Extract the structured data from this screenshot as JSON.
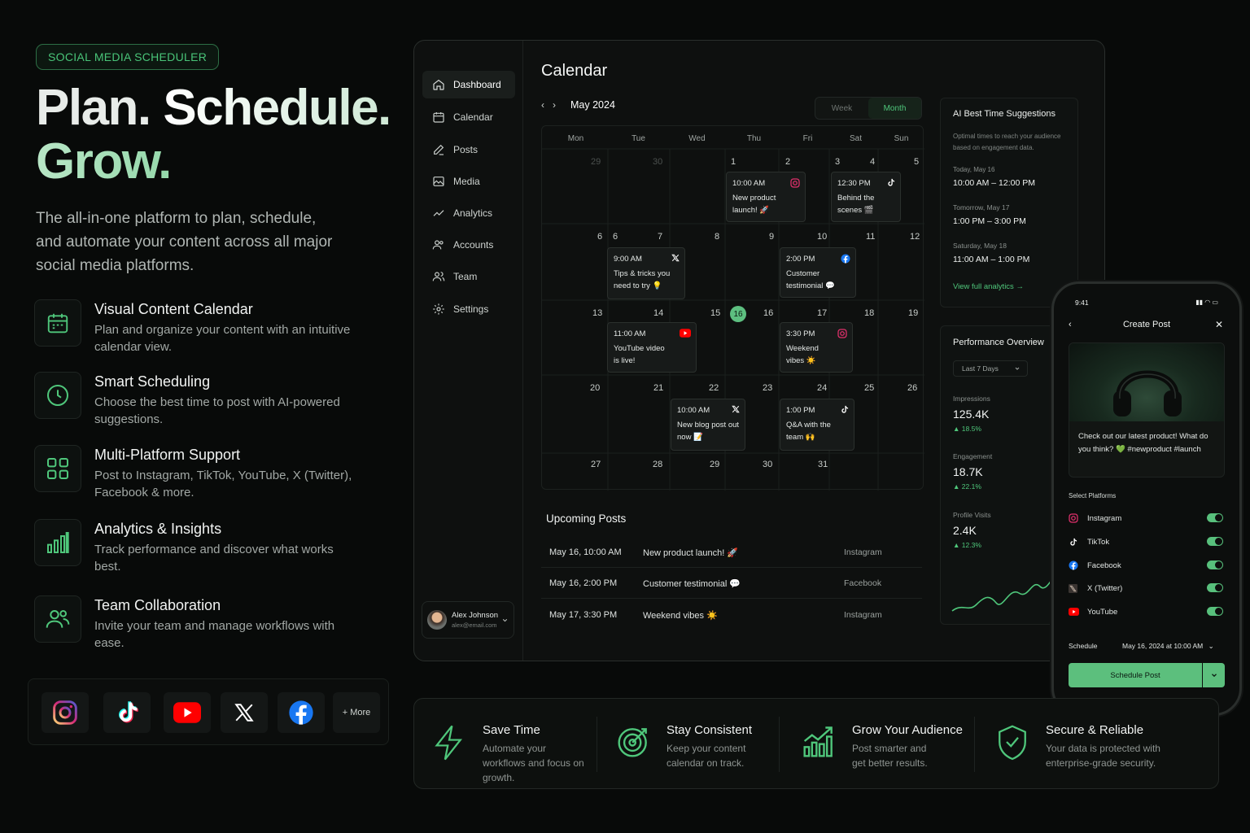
{
  "badge": "SOCIAL MEDIA SCHEDULER",
  "hero": {
    "line1": "Plan.",
    "line1b": "Schedule.",
    "line2": "Grow."
  },
  "subtitle": "The all-in-one platform to plan, schedule, and automate your content across all major social media platforms.",
  "features": [
    {
      "icon": "calendar-icon",
      "title": "Visual Content Calendar",
      "desc": "Plan and organize your content with an intuitive calendar view."
    },
    {
      "icon": "clock-icon",
      "title": "Smart Scheduling",
      "desc": "Choose the best time to post with AI-powered suggestions."
    },
    {
      "icon": "grid-icon",
      "title": "Multi-Platform Support",
      "desc": "Post to Instagram, TikTok, YouTube, X (Twitter), Facebook & more."
    },
    {
      "icon": "bar-chart-icon",
      "title": "Analytics & Insights",
      "desc": "Track performance and discover what works best."
    },
    {
      "icon": "users-icon",
      "title": "Team Collaboration",
      "desc": "Invite your team and manage workflows with ease."
    }
  ],
  "platform_bar": {
    "more": "+ More"
  },
  "sidebar": {
    "items": [
      "Dashboard",
      "Calendar",
      "Posts",
      "Media",
      "Analytics",
      "Accounts",
      "Team",
      "Settings"
    ],
    "user_name": "Alex Johnson",
    "user_email": "alex@email.com"
  },
  "calendar": {
    "title": "Calendar",
    "month": "May 2024",
    "view_week": "Week",
    "view_month": "Month",
    "days": [
      "Mon",
      "Tue",
      "Wed",
      "Thu",
      "Fri",
      "Sat",
      "Sun"
    ],
    "today": "16",
    "events": [
      {
        "time": "10:00 AM",
        "text": "New product launch! 🚀",
        "platform": "instagram"
      },
      {
        "time": "12:30 PM",
        "text": "Behind the scenes 🎬",
        "platform": "tiktok"
      },
      {
        "time": "9:00 AM",
        "text": "Tips & tricks you need to try 💡",
        "platform": "x"
      },
      {
        "time": "2:00 PM",
        "text": "Customer testimonial 💬",
        "platform": "facebook"
      },
      {
        "time": "11:00 AM",
        "text": "YouTube video is live!",
        "platform": "youtube"
      },
      {
        "time": "3:30 PM",
        "text": "Weekend vibes ☀️",
        "platform": "instagram"
      },
      {
        "time": "10:00 AM",
        "text": "New blog post out now 📝",
        "platform": "x"
      },
      {
        "time": "1:00 PM",
        "text": "Q&A with the team 🙌",
        "platform": "tiktok"
      }
    ]
  },
  "upcoming": {
    "title": "Upcoming Posts",
    "rows": [
      {
        "date": "May 16, 10:00 AM",
        "post": "New product launch! 🚀",
        "platform": "Instagram"
      },
      {
        "date": "May 16, 2:00 PM",
        "post": "Customer testimonial 💬",
        "platform": "Facebook"
      },
      {
        "date": "May 17, 3:30 PM",
        "post": "Weekend vibes ☀️",
        "platform": "Instagram"
      }
    ]
  },
  "ai": {
    "title": "AI Best Time Suggestions",
    "desc": "Optimal times to reach your audience based on engagement data.",
    "slots": [
      {
        "day": "Today, May 16",
        "time": "10:00 AM – 12:00 PM"
      },
      {
        "day": "Tomorrow, May 17",
        "time": "1:00 PM – 3:00 PM"
      },
      {
        "day": "Saturday, May 18",
        "time": "11:00 AM – 1:00 PM"
      }
    ],
    "link": "View full analytics"
  },
  "performance": {
    "title": "Performance Overview",
    "range": "Last 7 Days",
    "stats": [
      {
        "label": "Impressions",
        "value": "125.4K",
        "change": "18.5%"
      },
      {
        "label": "Engagement",
        "value": "18.7K",
        "change": "22.1%"
      },
      {
        "label": "Profile Visits",
        "value": "2.4K",
        "change": "12.3%"
      }
    ]
  },
  "phone": {
    "time": "9:41",
    "title": "Create Post",
    "caption": "Check out our latest product! What do you think? 💚 #newproduct #launch",
    "select_label": "Select Platforms",
    "platforms": [
      "Instagram",
      "TikTok",
      "Facebook",
      "X (Twitter)",
      "YouTube"
    ],
    "schedule_label": "Schedule",
    "schedule_value": "May 16, 2024 at 10:00 AM",
    "button": "Schedule Post"
  },
  "benefits": [
    {
      "title": "Save Time",
      "desc": "Automate your workflows and focus on growth."
    },
    {
      "title": "Stay Consistent",
      "desc": "Keep your content calendar on track."
    },
    {
      "title": "Grow Your Audience",
      "desc": "Post smarter and get better results."
    },
    {
      "title": "Secure & Reliable",
      "desc": "Your data is protected with enterprise-grade security."
    }
  ],
  "colors": {
    "accent": "#4fc77b",
    "background": "#080a09",
    "panel": "#0e100f"
  }
}
